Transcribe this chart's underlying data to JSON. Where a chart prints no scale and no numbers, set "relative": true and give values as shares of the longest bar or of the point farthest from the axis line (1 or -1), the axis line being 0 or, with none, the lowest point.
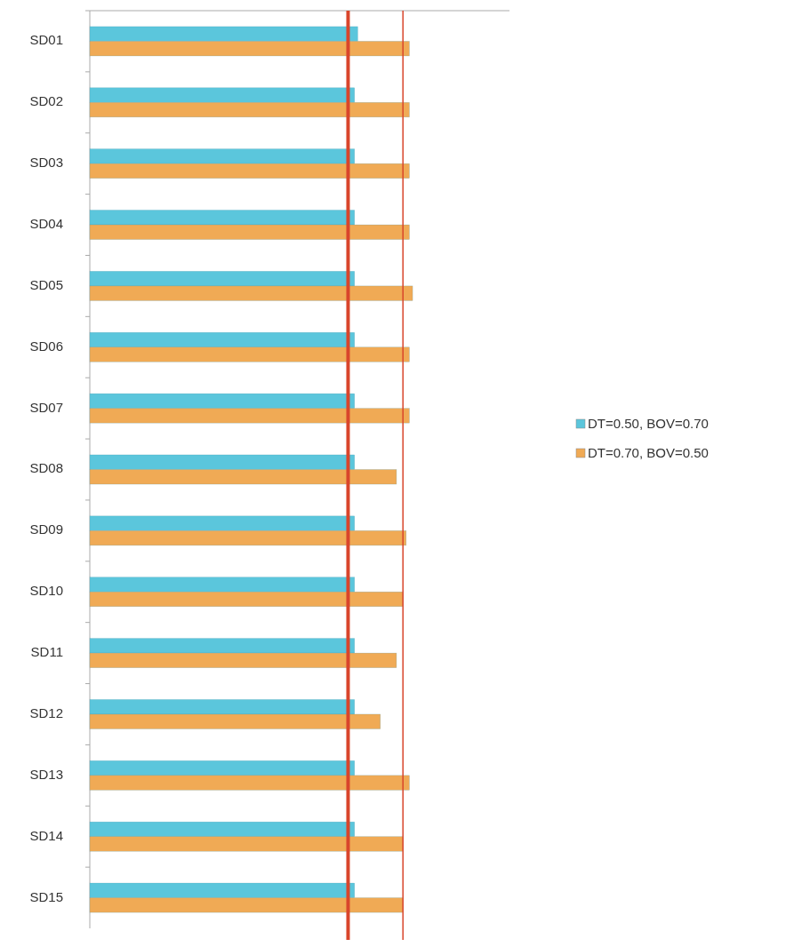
{
  "chart_data": {
    "type": "bar",
    "orientation": "horizontal",
    "relative": true,
    "categories": [
      "SD01",
      "SD02",
      "SD03",
      "SD04",
      "SD05",
      "SD06",
      "SD07",
      "SD08",
      "SD09",
      "SD10",
      "SD11",
      "SD12",
      "SD13",
      "SD14",
      "SD15"
    ],
    "series": [
      {
        "name": "DT=0.50, BOV=0.70",
        "color": "#5bc6dc",
        "values": [
          0.83,
          0.82,
          0.82,
          0.82,
          0.82,
          0.82,
          0.82,
          0.82,
          0.82,
          0.82,
          0.82,
          0.82,
          0.82,
          0.82,
          0.82
        ]
      },
      {
        "name": "DT=0.70, BOV=0.50",
        "color": "#f0aa55",
        "values": [
          0.99,
          0.99,
          0.99,
          0.99,
          1,
          0.99,
          0.99,
          0.95,
          0.98,
          0.97,
          0.95,
          0.9,
          0.99,
          0.97,
          0.97
        ]
      }
    ],
    "ref_lines": [
      {
        "axis": "x",
        "value": 0.8,
        "color": "#d9452b"
      },
      {
        "axis": "x",
        "value": 0.97,
        "color": "#d9452b"
      }
    ],
    "legend": "right"
  }
}
